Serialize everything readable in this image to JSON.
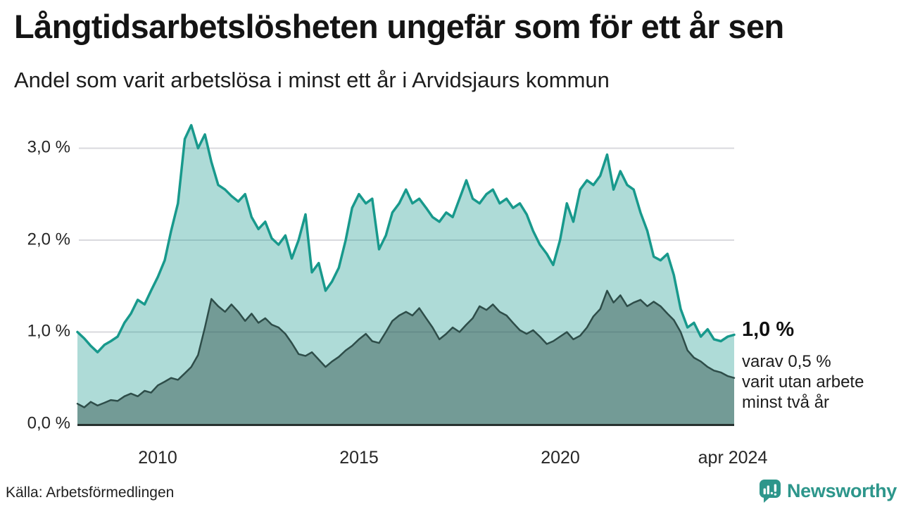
{
  "header": {
    "title": "Långtidsarbetslösheten ungefär som för ett år sen",
    "subtitle": "Andel som varit arbetslösa i minst ett år i Arvidsjaurs kommun"
  },
  "annotation": {
    "primary": "1,0 %",
    "secondary": "varav 0,5 %\nvarit utan arbete\nminst två år"
  },
  "footer": {
    "source": "Källa: Arbetsförmedlingen",
    "brand": "Newsworthy"
  },
  "colors": {
    "accent_teal": "#18998C",
    "dark_teal": "#2E4D49",
    "fill_light": "rgba(24,153,140,0.35)",
    "fill_dark": "rgba(45,77,72,0.45)",
    "grid": "#D9D9DE",
    "axis": "#27312F",
    "brand_teal": "#2D968B",
    "text": "#141414"
  },
  "chart_data": {
    "type": "area",
    "title": "Långtidsarbetslösheten ungefär som för ett år sen",
    "subtitle": "Andel som varit arbetslösa i minst ett år i Arvidsjaurs kommun",
    "xlabel": "",
    "ylabel": "",
    "grid": "horizontal",
    "legend": "none",
    "xlim": [
      2008,
      2024.33
    ],
    "ylim": [
      0,
      3.31
    ],
    "y_ticks": [
      {
        "value": 0,
        "label": "0,0 %"
      },
      {
        "value": 1,
        "label": "1,0 %"
      },
      {
        "value": 2,
        "label": "2,0 %"
      },
      {
        "value": 3,
        "label": "3,0 %"
      }
    ],
    "x_ticks": [
      {
        "value": 2010,
        "label": "2010"
      },
      {
        "value": 2015,
        "label": "2015"
      },
      {
        "value": 2020,
        "label": "2020"
      },
      {
        "value": 2024.29,
        "label": "apr 2024"
      }
    ],
    "end_labels": {
      "primary": "1,0 %",
      "secondary": "varav 0,5 %\nvarit utan arbete\nminst två år"
    },
    "x": [
      2008,
      2008.17,
      2008.33,
      2008.5,
      2008.67,
      2008.83,
      2009,
      2009.17,
      2009.33,
      2009.5,
      2009.67,
      2009.83,
      2010,
      2010.17,
      2010.33,
      2010.5,
      2010.67,
      2010.83,
      2011,
      2011.17,
      2011.33,
      2011.5,
      2011.67,
      2011.83,
      2012,
      2012.17,
      2012.33,
      2012.5,
      2012.67,
      2012.83,
      2013,
      2013.17,
      2013.33,
      2013.5,
      2013.67,
      2013.83,
      2014,
      2014.17,
      2014.33,
      2014.5,
      2014.67,
      2014.83,
      2015,
      2015.17,
      2015.33,
      2015.5,
      2015.67,
      2015.83,
      2016,
      2016.17,
      2016.33,
      2016.5,
      2016.67,
      2016.83,
      2017,
      2017.17,
      2017.33,
      2017.5,
      2017.67,
      2017.83,
      2018,
      2018.17,
      2018.33,
      2018.5,
      2018.67,
      2018.83,
      2019,
      2019.17,
      2019.33,
      2019.5,
      2019.67,
      2019.83,
      2020,
      2020.17,
      2020.33,
      2020.5,
      2020.67,
      2020.83,
      2021,
      2021.17,
      2021.33,
      2021.5,
      2021.67,
      2021.83,
      2022,
      2022.17,
      2022.33,
      2022.5,
      2022.67,
      2022.83,
      2023,
      2023.17,
      2023.33,
      2023.5,
      2023.67,
      2023.83,
      2024,
      2024.17,
      2024.33
    ],
    "series": [
      {
        "name": "Arbetslösa minst ett år",
        "line_color": "#18998C",
        "fill_color": "rgba(24,153,140,0.35)",
        "line_width": 3.5,
        "values": [
          1.0,
          0.93,
          0.85,
          0.78,
          0.86,
          0.9,
          0.95,
          1.1,
          1.2,
          1.35,
          1.3,
          1.45,
          1.6,
          1.78,
          2.1,
          2.4,
          3.1,
          3.25,
          3.0,
          3.15,
          2.85,
          2.6,
          2.55,
          2.48,
          2.42,
          2.5,
          2.25,
          2.12,
          2.2,
          2.02,
          1.95,
          2.05,
          1.8,
          2.0,
          2.28,
          1.65,
          1.75,
          1.45,
          1.55,
          1.7,
          2.0,
          2.35,
          2.5,
          2.4,
          2.45,
          1.9,
          2.05,
          2.3,
          2.4,
          2.55,
          2.4,
          2.45,
          2.35,
          2.25,
          2.2,
          2.3,
          2.25,
          2.45,
          2.65,
          2.45,
          2.4,
          2.5,
          2.55,
          2.4,
          2.45,
          2.35,
          2.4,
          2.28,
          2.1,
          1.95,
          1.85,
          1.73,
          2.0,
          2.4,
          2.2,
          2.55,
          2.65,
          2.6,
          2.7,
          2.93,
          2.55,
          2.75,
          2.6,
          2.55,
          2.3,
          2.1,
          1.82,
          1.78,
          1.85,
          1.62,
          1.25,
          1.05,
          1.1,
          0.95,
          1.03,
          0.92,
          0.9,
          0.95,
          0.97
        ]
      },
      {
        "name": "Varav utan arbete minst två år",
        "line_color": "#2E4D49",
        "fill_color": "rgba(45,77,72,0.45)",
        "line_width": 2.5,
        "values": [
          0.22,
          0.18,
          0.24,
          0.2,
          0.23,
          0.26,
          0.25,
          0.3,
          0.33,
          0.3,
          0.36,
          0.34,
          0.42,
          0.46,
          0.5,
          0.48,
          0.55,
          0.62,
          0.75,
          1.05,
          1.36,
          1.28,
          1.22,
          1.3,
          1.22,
          1.12,
          1.2,
          1.1,
          1.15,
          1.08,
          1.05,
          0.98,
          0.88,
          0.76,
          0.74,
          0.78,
          0.7,
          0.62,
          0.68,
          0.73,
          0.8,
          0.85,
          0.92,
          0.98,
          0.9,
          0.88,
          1.0,
          1.12,
          1.18,
          1.22,
          1.18,
          1.26,
          1.15,
          1.05,
          0.92,
          0.98,
          1.05,
          1.0,
          1.08,
          1.15,
          1.28,
          1.24,
          1.3,
          1.22,
          1.18,
          1.1,
          1.02,
          0.98,
          1.02,
          0.95,
          0.87,
          0.9,
          0.95,
          1.0,
          0.92,
          0.96,
          1.05,
          1.17,
          1.25,
          1.45,
          1.32,
          1.4,
          1.28,
          1.32,
          1.35,
          1.28,
          1.33,
          1.28,
          1.2,
          1.13,
          1.0,
          0.8,
          0.72,
          0.68,
          0.62,
          0.58,
          0.56,
          0.52,
          0.5
        ]
      }
    ]
  }
}
